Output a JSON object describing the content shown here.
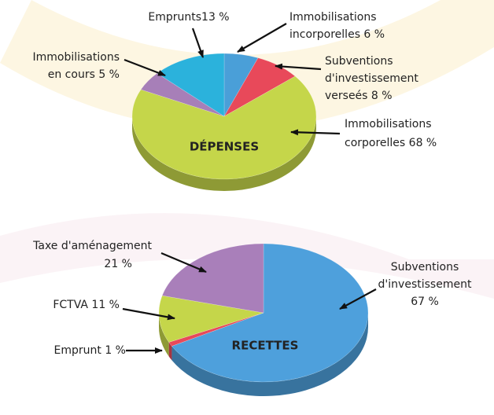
{
  "chart_data": [
    {
      "type": "pie",
      "title": "DÉPENSES",
      "categories": [
        "Immobilisations incorporelles",
        "Subventions d'investissement verseés",
        "Immobilisations corporelles",
        "Immobilisations en cours",
        "Emprunts"
      ],
      "values": [
        6,
        8,
        68,
        5,
        13
      ],
      "value_labels": [
        "6 %",
        "8 %",
        "68 %",
        "5 %",
        "13 %"
      ],
      "colors": [
        "#4a9fd8",
        "#e8495a",
        "#c5d64a",
        "#a77fb8",
        "#2bb2dc"
      ]
    },
    {
      "type": "pie",
      "title": "RECETTES",
      "categories": [
        "Subventions d'investissement",
        "Emprunt",
        "FCTVA",
        "Taxe d'aménagement"
      ],
      "values": [
        67,
        1,
        11,
        21
      ],
      "value_labels": [
        "67 %",
        "1 %",
        "11 %",
        "21 %"
      ],
      "colors": [
        "#4ea0dc",
        "#e8495a",
        "#c5d64a",
        "#a97fba"
      ]
    }
  ]
}
